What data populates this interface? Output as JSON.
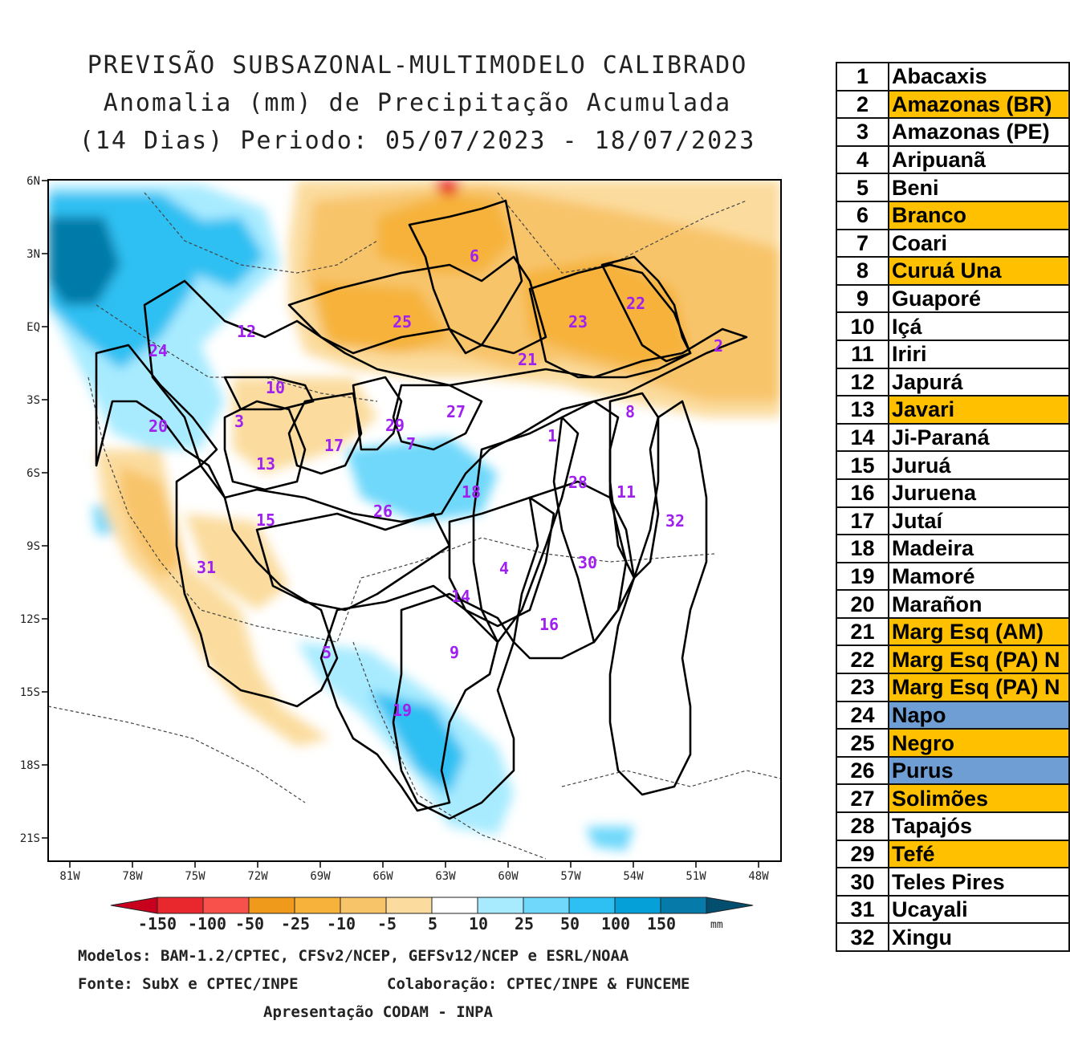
{
  "title": {
    "line1": "PREVISÃO SUBSAZONAL-MULTIMODELO CALIBRADO",
    "line2": "Anomalia (mm) de Precipitação Acumulada",
    "line3": "(14 Dias) Periodo: 05/07/2023 - 18/07/2023"
  },
  "axes": {
    "lat_labels": [
      "6N",
      "3N",
      "EQ",
      "3S",
      "6S",
      "9S",
      "12S",
      "15S",
      "18S",
      "21S"
    ],
    "lon_labels": [
      "81W",
      "78W",
      "75W",
      "72W",
      "69W",
      "66W",
      "63W",
      "60W",
      "57W",
      "54W",
      "51W",
      "48W"
    ]
  },
  "colorbar": {
    "labels": [
      "-150",
      "-100",
      "-50",
      "-25",
      "-10",
      "-5",
      "5",
      "10",
      "25",
      "50",
      "100",
      "150"
    ],
    "unit": "mm",
    "colors": [
      "#c8001e",
      "#e8282d",
      "#f8504a",
      "#f09a1c",
      "#f6b23a",
      "#f8c46a",
      "#fbdc9e",
      "#ffffff",
      "#a8ebff",
      "#6fd8fb",
      "#2ec0f2",
      "#06a0d8",
      "#067aa8",
      "#034e6e"
    ]
  },
  "map_numbers": [
    {
      "id": "1"
    },
    {
      "id": "2"
    },
    {
      "id": "3"
    },
    {
      "id": "4"
    },
    {
      "id": "5"
    },
    {
      "id": "6"
    },
    {
      "id": "7"
    },
    {
      "id": "8"
    },
    {
      "id": "9"
    },
    {
      "id": "10"
    },
    {
      "id": "11"
    },
    {
      "id": "12"
    },
    {
      "id": "13"
    },
    {
      "id": "14"
    },
    {
      "id": "15"
    },
    {
      "id": "16"
    },
    {
      "id": "17"
    },
    {
      "id": "18"
    },
    {
      "id": "19"
    },
    {
      "id": "20"
    },
    {
      "id": "21"
    },
    {
      "id": "22"
    },
    {
      "id": "23"
    },
    {
      "id": "24"
    },
    {
      "id": "25"
    },
    {
      "id": "26"
    },
    {
      "id": "27"
    },
    {
      "id": "28"
    },
    {
      "id": "29"
    },
    {
      "id": "30"
    },
    {
      "id": "31"
    },
    {
      "id": "32"
    }
  ],
  "footer": {
    "models": "Modelos: BAM-1.2/CPTEC, CFSv2/NCEP, GEFSv12/NCEP e ESRL/NOAA",
    "source": "Fonte: SubX e CPTEC/INPE",
    "collab": "Colaboração: CPTEC/INPE & FUNCEME",
    "presentation": "Apresentação CODAM - INPA"
  },
  "legend_colors": {
    "orange": "#ffc000",
    "blue": "#6f9ed4"
  },
  "legend": [
    {
      "num": "1",
      "name": "Abacaxis",
      "highlight": ""
    },
    {
      "num": "2",
      "name": "Amazonas (BR)",
      "highlight": "orange"
    },
    {
      "num": "3",
      "name": "Amazonas (PE)",
      "highlight": ""
    },
    {
      "num": "4",
      "name": "Aripuanã",
      "highlight": ""
    },
    {
      "num": "5",
      "name": "Beni",
      "highlight": ""
    },
    {
      "num": "6",
      "name": "Branco",
      "highlight": "orange"
    },
    {
      "num": "7",
      "name": "Coari",
      "highlight": ""
    },
    {
      "num": "8",
      "name": "Curuá Una",
      "highlight": "orange"
    },
    {
      "num": "9",
      "name": "Guaporé",
      "highlight": ""
    },
    {
      "num": "10",
      "name": "Içá",
      "highlight": ""
    },
    {
      "num": "11",
      "name": "Iriri",
      "highlight": ""
    },
    {
      "num": "12",
      "name": "Japurá",
      "highlight": ""
    },
    {
      "num": "13",
      "name": "Javari",
      "highlight": "orange"
    },
    {
      "num": "14",
      "name": "Ji-Paraná",
      "highlight": ""
    },
    {
      "num": "15",
      "name": "Juruá",
      "highlight": ""
    },
    {
      "num": "16",
      "name": "Juruena",
      "highlight": ""
    },
    {
      "num": "17",
      "name": "Jutaí",
      "highlight": ""
    },
    {
      "num": "18",
      "name": "Madeira",
      "highlight": ""
    },
    {
      "num": "19",
      "name": "Mamoré",
      "highlight": ""
    },
    {
      "num": "20",
      "name": "Marañon",
      "highlight": ""
    },
    {
      "num": "21",
      "name": "Marg Esq (AM)",
      "highlight": "orange"
    },
    {
      "num": "22",
      "name": "Marg Esq (PA) N",
      "highlight": "orange"
    },
    {
      "num": "23",
      "name": "Marg Esq (PA) N",
      "highlight": "orange"
    },
    {
      "num": "24",
      "name": "Napo",
      "highlight": "blue"
    },
    {
      "num": "25",
      "name": "Negro",
      "highlight": "orange"
    },
    {
      "num": "26",
      "name": "Purus",
      "highlight": "blue"
    },
    {
      "num": "27",
      "name": "Solimões",
      "highlight": "orange"
    },
    {
      "num": "28",
      "name": "Tapajós",
      "highlight": ""
    },
    {
      "num": "29",
      "name": "Tefé",
      "highlight": "orange"
    },
    {
      "num": "30",
      "name": "Teles Pires",
      "highlight": ""
    },
    {
      "num": "31",
      "name": "Ucayali",
      "highlight": ""
    },
    {
      "num": "32",
      "name": "Xingu",
      "highlight": ""
    }
  ]
}
